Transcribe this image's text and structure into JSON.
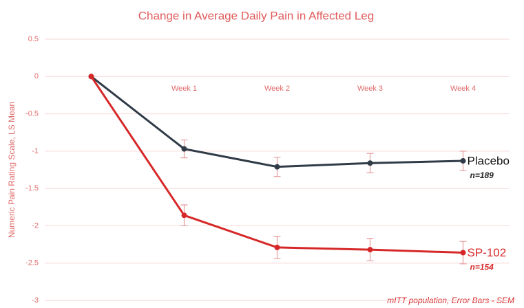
{
  "chart_data": {
    "type": "line",
    "title": "Change in Average Daily Pain in Affected Leg",
    "y_label": "Numeric Pain Rating Scale, LS Mean",
    "categories": [
      null,
      "Week 1",
      "Week 2",
      "Week 3",
      "Week 4"
    ],
    "series": [
      {
        "name": "Placebo",
        "color": "#2f3b47",
        "values": [
          0,
          -0.97,
          -1.21,
          -1.16,
          -1.13
        ],
        "errors": [
          0,
          0.12,
          0.13,
          0.13,
          0.13
        ]
      },
      {
        "name": "SP-102",
        "color": "#d62828",
        "values": [
          0,
          -1.86,
          -2.29,
          -2.32,
          -2.36
        ],
        "errors": [
          0,
          0.14,
          0.15,
          0.15,
          0.15
        ]
      }
    ],
    "annotations": [
      "n=189",
      "n=154"
    ],
    "footnote": "mITT population, Error Bars - SEM",
    "ylim": [
      -3,
      0.5
    ],
    "yticks": [
      0.5,
      0,
      -0.5,
      -1,
      -1.5,
      -2,
      -2.5,
      -3
    ],
    "grid": true
  }
}
